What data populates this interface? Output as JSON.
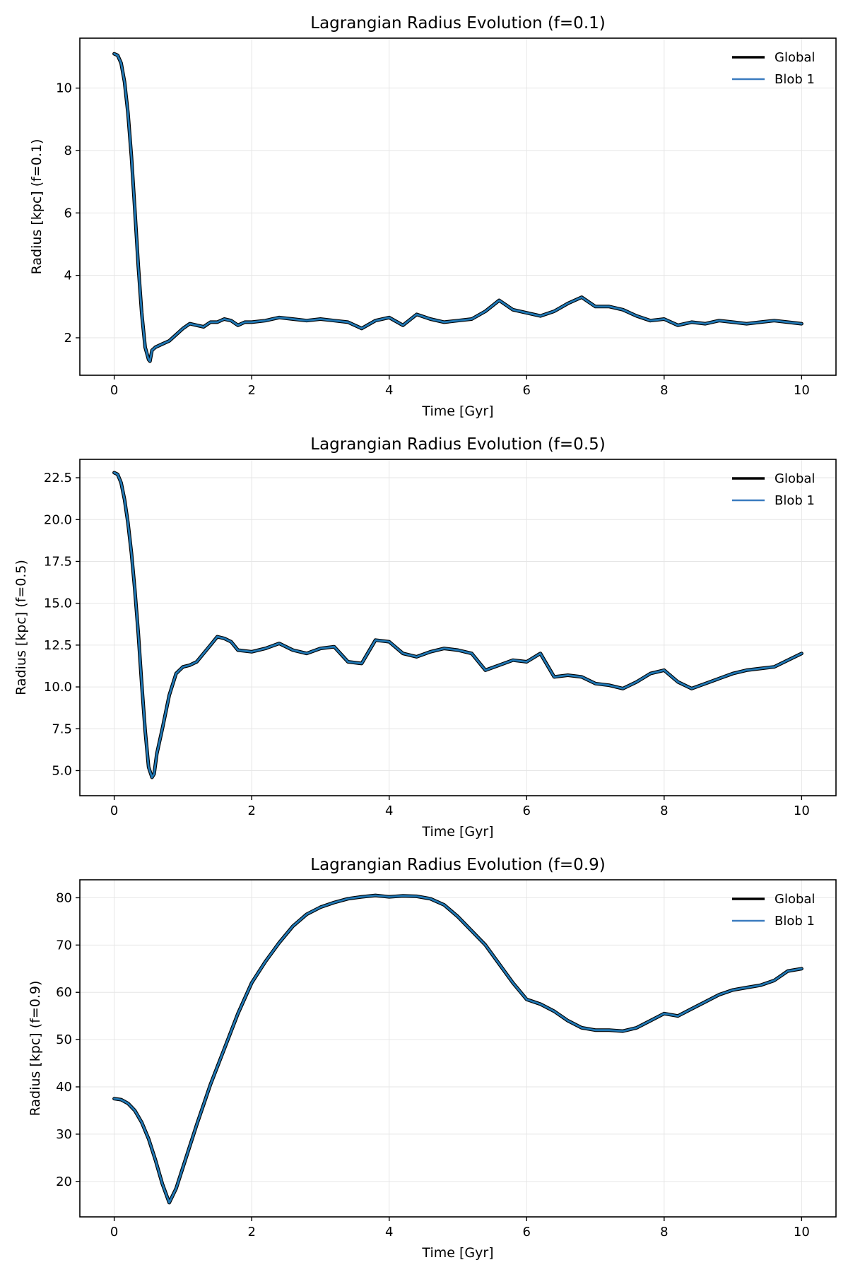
{
  "colors": {
    "global": "#000000",
    "blob": "#1f77b4",
    "grid": "#e6e6e6",
    "axes": "#000000",
    "legend_blob_swatch": "#3a7bbf"
  },
  "chart_data": [
    {
      "type": "line",
      "title": "Lagrangian Radius Evolution (f=0.1)",
      "xlabel": "Time [Gyr]",
      "ylabel": "Radius [kpc] (f=0.1)",
      "xlim": [
        -0.5,
        10.5
      ],
      "ylim": [
        0.8,
        11.6
      ],
      "xticks": [
        0,
        2,
        4,
        6,
        8,
        10
      ],
      "yticks": [
        2,
        4,
        6,
        8,
        10
      ],
      "grid": true,
      "legend_position": "top-right",
      "series": [
        {
          "name": "Global",
          "x": [
            0,
            0.05,
            0.1,
            0.15,
            0.2,
            0.25,
            0.3,
            0.35,
            0.4,
            0.45,
            0.5,
            0.52,
            0.55,
            0.6,
            0.7,
            0.8,
            0.9,
            1.0,
            1.1,
            1.2,
            1.3,
            1.4,
            1.5,
            1.6,
            1.7,
            1.8,
            1.9,
            2.0,
            2.2,
            2.4,
            2.6,
            2.8,
            3.0,
            3.2,
            3.4,
            3.6,
            3.8,
            4.0,
            4.2,
            4.4,
            4.6,
            4.8,
            5.0,
            5.2,
            5.4,
            5.6,
            5.8,
            6.0,
            6.2,
            6.4,
            6.6,
            6.8,
            7.0,
            7.2,
            7.4,
            7.6,
            7.8,
            8.0,
            8.2,
            8.4,
            8.6,
            8.8,
            9.0,
            9.2,
            9.4,
            9.6,
            9.8,
            10.0
          ],
          "y": [
            11.1,
            11.05,
            10.8,
            10.2,
            9.2,
            7.8,
            6.1,
            4.3,
            2.8,
            1.7,
            1.3,
            1.25,
            1.6,
            1.7,
            1.8,
            1.9,
            2.1,
            2.3,
            2.45,
            2.4,
            2.35,
            2.5,
            2.5,
            2.6,
            2.55,
            2.4,
            2.5,
            2.5,
            2.55,
            2.65,
            2.6,
            2.55,
            2.6,
            2.55,
            2.5,
            2.3,
            2.55,
            2.65,
            2.4,
            2.75,
            2.6,
            2.5,
            2.55,
            2.6,
            2.85,
            3.2,
            2.9,
            2.8,
            2.7,
            2.85,
            3.1,
            3.3,
            3.0,
            3.0,
            2.9,
            2.7,
            2.55,
            2.6,
            2.4,
            2.5,
            2.45,
            2.55,
            2.5,
            2.45,
            2.5,
            2.55,
            2.5,
            2.45
          ]
        },
        {
          "name": "Blob 1",
          "x": [
            0,
            0.05,
            0.1,
            0.15,
            0.2,
            0.25,
            0.3,
            0.35,
            0.4,
            0.45,
            0.5,
            0.52,
            0.55,
            0.6,
            0.7,
            0.8,
            0.9,
            1.0,
            1.1,
            1.2,
            1.3,
            1.4,
            1.5,
            1.6,
            1.7,
            1.8,
            1.9,
            2.0,
            2.2,
            2.4,
            2.6,
            2.8,
            3.0,
            3.2,
            3.4,
            3.6,
            3.8,
            4.0,
            4.2,
            4.4,
            4.6,
            4.8,
            5.0,
            5.2,
            5.4,
            5.6,
            5.8,
            6.0,
            6.2,
            6.4,
            6.6,
            6.8,
            7.0,
            7.2,
            7.4,
            7.6,
            7.8,
            8.0,
            8.2,
            8.4,
            8.6,
            8.8,
            9.0,
            9.2,
            9.4,
            9.6,
            9.8,
            10.0
          ],
          "y": [
            11.1,
            11.05,
            10.8,
            10.2,
            9.2,
            7.8,
            6.1,
            4.3,
            2.8,
            1.7,
            1.3,
            1.25,
            1.6,
            1.7,
            1.8,
            1.9,
            2.1,
            2.3,
            2.45,
            2.4,
            2.35,
            2.5,
            2.5,
            2.6,
            2.55,
            2.4,
            2.5,
            2.5,
            2.55,
            2.65,
            2.6,
            2.55,
            2.6,
            2.55,
            2.5,
            2.3,
            2.55,
            2.65,
            2.4,
            2.75,
            2.6,
            2.5,
            2.55,
            2.6,
            2.85,
            3.2,
            2.9,
            2.8,
            2.7,
            2.85,
            3.1,
            3.3,
            3.0,
            3.0,
            2.9,
            2.7,
            2.55,
            2.6,
            2.4,
            2.5,
            2.45,
            2.55,
            2.5,
            2.45,
            2.5,
            2.55,
            2.5,
            2.45
          ]
        }
      ]
    },
    {
      "type": "line",
      "title": "Lagrangian Radius Evolution (f=0.5)",
      "xlabel": "Time [Gyr]",
      "ylabel": "Radius [kpc] (f=0.5)",
      "xlim": [
        -0.5,
        10.5
      ],
      "ylim": [
        3.5,
        23.6
      ],
      "xticks": [
        0,
        2,
        4,
        6,
        8,
        10
      ],
      "yticks": [
        5.0,
        7.5,
        10.0,
        12.5,
        15.0,
        17.5,
        20.0,
        22.5
      ],
      "ytick_labels": [
        "5.0",
        "7.5",
        "10.0",
        "12.5",
        "15.0",
        "17.5",
        "20.0",
        "22.5"
      ],
      "grid": true,
      "legend_position": "top-right",
      "series": [
        {
          "name": "Global",
          "x": [
            0,
            0.05,
            0.1,
            0.15,
            0.2,
            0.25,
            0.3,
            0.35,
            0.4,
            0.45,
            0.5,
            0.55,
            0.58,
            0.62,
            0.7,
            0.8,
            0.9,
            1.0,
            1.1,
            1.2,
            1.3,
            1.4,
            1.5,
            1.6,
            1.7,
            1.8,
            2.0,
            2.2,
            2.4,
            2.6,
            2.8,
            3.0,
            3.2,
            3.4,
            3.6,
            3.8,
            4.0,
            4.2,
            4.4,
            4.6,
            4.8,
            5.0,
            5.2,
            5.4,
            5.6,
            5.8,
            6.0,
            6.2,
            6.4,
            6.6,
            6.8,
            7.0,
            7.2,
            7.4,
            7.6,
            7.8,
            8.0,
            8.2,
            8.4,
            8.6,
            8.8,
            9.0,
            9.2,
            9.4,
            9.6,
            9.8,
            10.0
          ],
          "y": [
            22.8,
            22.7,
            22.2,
            21.2,
            19.8,
            18.0,
            15.8,
            13.2,
            10.2,
            7.4,
            5.2,
            4.6,
            4.8,
            6.0,
            7.5,
            9.5,
            10.8,
            11.2,
            11.3,
            11.5,
            12.0,
            12.5,
            13.0,
            12.9,
            12.7,
            12.2,
            12.1,
            12.3,
            12.6,
            12.2,
            12.0,
            12.3,
            12.4,
            11.5,
            11.4,
            12.8,
            12.7,
            12.0,
            11.8,
            12.1,
            12.3,
            12.2,
            12.0,
            11.0,
            11.3,
            11.6,
            11.5,
            12.0,
            10.6,
            10.7,
            10.6,
            10.2,
            10.1,
            9.9,
            10.3,
            10.8,
            11.0,
            10.3,
            9.9,
            10.2,
            10.5,
            10.8,
            11.0,
            11.1,
            11.2,
            11.6,
            12.0
          ]
        },
        {
          "name": "Blob 1",
          "x": [
            0,
            0.05,
            0.1,
            0.15,
            0.2,
            0.25,
            0.3,
            0.35,
            0.4,
            0.45,
            0.5,
            0.55,
            0.58,
            0.62,
            0.7,
            0.8,
            0.9,
            1.0,
            1.1,
            1.2,
            1.3,
            1.4,
            1.5,
            1.6,
            1.7,
            1.8,
            2.0,
            2.2,
            2.4,
            2.6,
            2.8,
            3.0,
            3.2,
            3.4,
            3.6,
            3.8,
            4.0,
            4.2,
            4.4,
            4.6,
            4.8,
            5.0,
            5.2,
            5.4,
            5.6,
            5.8,
            6.0,
            6.2,
            6.4,
            6.6,
            6.8,
            7.0,
            7.2,
            7.4,
            7.6,
            7.8,
            8.0,
            8.2,
            8.4,
            8.6,
            8.8,
            9.0,
            9.2,
            9.4,
            9.6,
            9.8,
            10.0
          ],
          "y": [
            22.8,
            22.7,
            22.2,
            21.2,
            19.8,
            18.0,
            15.8,
            13.2,
            10.2,
            7.4,
            5.2,
            4.6,
            4.8,
            6.0,
            7.5,
            9.5,
            10.8,
            11.2,
            11.3,
            11.5,
            12.0,
            12.5,
            13.0,
            12.9,
            12.7,
            12.2,
            12.1,
            12.3,
            12.6,
            12.2,
            12.0,
            12.3,
            12.4,
            11.5,
            11.4,
            12.8,
            12.7,
            12.0,
            11.8,
            12.1,
            12.3,
            12.2,
            12.0,
            11.0,
            11.3,
            11.6,
            11.5,
            12.0,
            10.6,
            10.7,
            10.6,
            10.2,
            10.1,
            9.9,
            10.3,
            10.8,
            11.0,
            10.3,
            9.9,
            10.2,
            10.5,
            10.8,
            11.0,
            11.1,
            11.2,
            11.6,
            12.0
          ]
        }
      ]
    },
    {
      "type": "line",
      "title": "Lagrangian Radius Evolution (f=0.9)",
      "xlabel": "Time [Gyr]",
      "ylabel": "Radius [kpc] (f=0.9)",
      "xlim": [
        -0.5,
        10.5
      ],
      "ylim": [
        12.5,
        83.8
      ],
      "xticks": [
        0,
        2,
        4,
        6,
        8,
        10
      ],
      "yticks": [
        20,
        30,
        40,
        50,
        60,
        70,
        80
      ],
      "grid": true,
      "legend_position": "top-right",
      "series": [
        {
          "name": "Global",
          "x": [
            0,
            0.1,
            0.2,
            0.3,
            0.4,
            0.5,
            0.6,
            0.7,
            0.8,
            0.9,
            1.0,
            1.2,
            1.4,
            1.6,
            1.8,
            2.0,
            2.2,
            2.4,
            2.6,
            2.8,
            3.0,
            3.2,
            3.4,
            3.6,
            3.8,
            4.0,
            4.2,
            4.4,
            4.6,
            4.8,
            5.0,
            5.2,
            5.4,
            5.6,
            5.8,
            6.0,
            6.2,
            6.4,
            6.6,
            6.8,
            7.0,
            7.2,
            7.4,
            7.6,
            7.8,
            8.0,
            8.2,
            8.4,
            8.6,
            8.8,
            9.0,
            9.2,
            9.4,
            9.6,
            9.8,
            10.0
          ],
          "y": [
            37.5,
            37.3,
            36.5,
            35.0,
            32.5,
            29.0,
            24.5,
            19.5,
            15.5,
            18.5,
            23.0,
            32.0,
            40.5,
            48.0,
            55.5,
            62.0,
            66.5,
            70.5,
            74.0,
            76.5,
            78.0,
            79.0,
            79.8,
            80.2,
            80.5,
            80.2,
            80.4,
            80.3,
            79.8,
            78.5,
            76.0,
            73.0,
            70.0,
            66.0,
            62.0,
            58.5,
            57.5,
            56.0,
            54.0,
            52.5,
            52.0,
            52.0,
            51.8,
            52.5,
            54.0,
            55.5,
            55.0,
            56.5,
            58.0,
            59.5,
            60.5,
            61.0,
            61.5,
            62.5,
            64.5,
            65.0
          ]
        },
        {
          "name": "Blob 1",
          "x": [
            0,
            0.1,
            0.2,
            0.3,
            0.4,
            0.5,
            0.6,
            0.7,
            0.8,
            0.9,
            1.0,
            1.2,
            1.4,
            1.6,
            1.8,
            2.0,
            2.2,
            2.4,
            2.6,
            2.8,
            3.0,
            3.2,
            3.4,
            3.6,
            3.8,
            4.0,
            4.2,
            4.4,
            4.6,
            4.8,
            5.0,
            5.2,
            5.4,
            5.6,
            5.8,
            6.0,
            6.2,
            6.4,
            6.6,
            6.8,
            7.0,
            7.2,
            7.4,
            7.6,
            7.8,
            8.0,
            8.2,
            8.4,
            8.6,
            8.8,
            9.0,
            9.2,
            9.4,
            9.6,
            9.8,
            10.0
          ],
          "y": [
            37.5,
            37.3,
            36.5,
            35.0,
            32.5,
            29.0,
            24.5,
            19.5,
            15.5,
            18.5,
            23.0,
            32.0,
            40.5,
            48.0,
            55.5,
            62.0,
            66.5,
            70.5,
            74.0,
            76.5,
            78.0,
            79.0,
            79.8,
            80.2,
            80.5,
            80.2,
            80.4,
            80.3,
            79.8,
            78.5,
            76.0,
            73.0,
            70.0,
            66.0,
            62.0,
            58.5,
            57.5,
            56.0,
            54.0,
            52.5,
            52.0,
            52.0,
            51.8,
            52.5,
            54.0,
            55.5,
            55.0,
            56.5,
            58.0,
            59.5,
            60.5,
            61.0,
            61.5,
            62.5,
            64.5,
            65.0
          ]
        }
      ]
    }
  ]
}
